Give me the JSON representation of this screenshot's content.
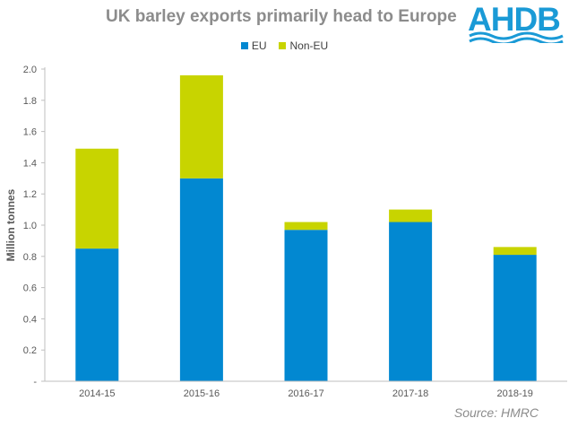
{
  "header": {
    "title": "UK barley exports primarily head to Europe",
    "logo_text": "AHDB"
  },
  "colors": {
    "eu": "#0288d1",
    "non_eu": "#c8d400",
    "axis": "#bfbfbf",
    "text": "#595959",
    "logo": "#1a9ad6"
  },
  "source": "Source: HMRC",
  "chart_data": {
    "type": "bar",
    "stacked": true,
    "title": "UK barley exports primarily head to Europe",
    "xlabel": "",
    "ylabel": "Million tonnes",
    "categories": [
      "2014-15",
      "2015-16",
      "2016-17",
      "2017-18",
      "2018-19"
    ],
    "series": [
      {
        "name": "EU",
        "color": "#0288d1",
        "values": [
          0.85,
          1.3,
          0.97,
          1.02,
          0.81
        ]
      },
      {
        "name": "Non-EU",
        "color": "#c8d400",
        "values": [
          0.64,
          0.66,
          0.05,
          0.08,
          0.05
        ]
      }
    ],
    "ylim": [
      0,
      2.0
    ],
    "yticks": [
      "-",
      "0.2",
      "0.4",
      "0.6",
      "0.8",
      "1.0",
      "1.2",
      "1.4",
      "1.6",
      "1.8",
      "2.0"
    ],
    "grid": false,
    "legend": "top-center"
  }
}
